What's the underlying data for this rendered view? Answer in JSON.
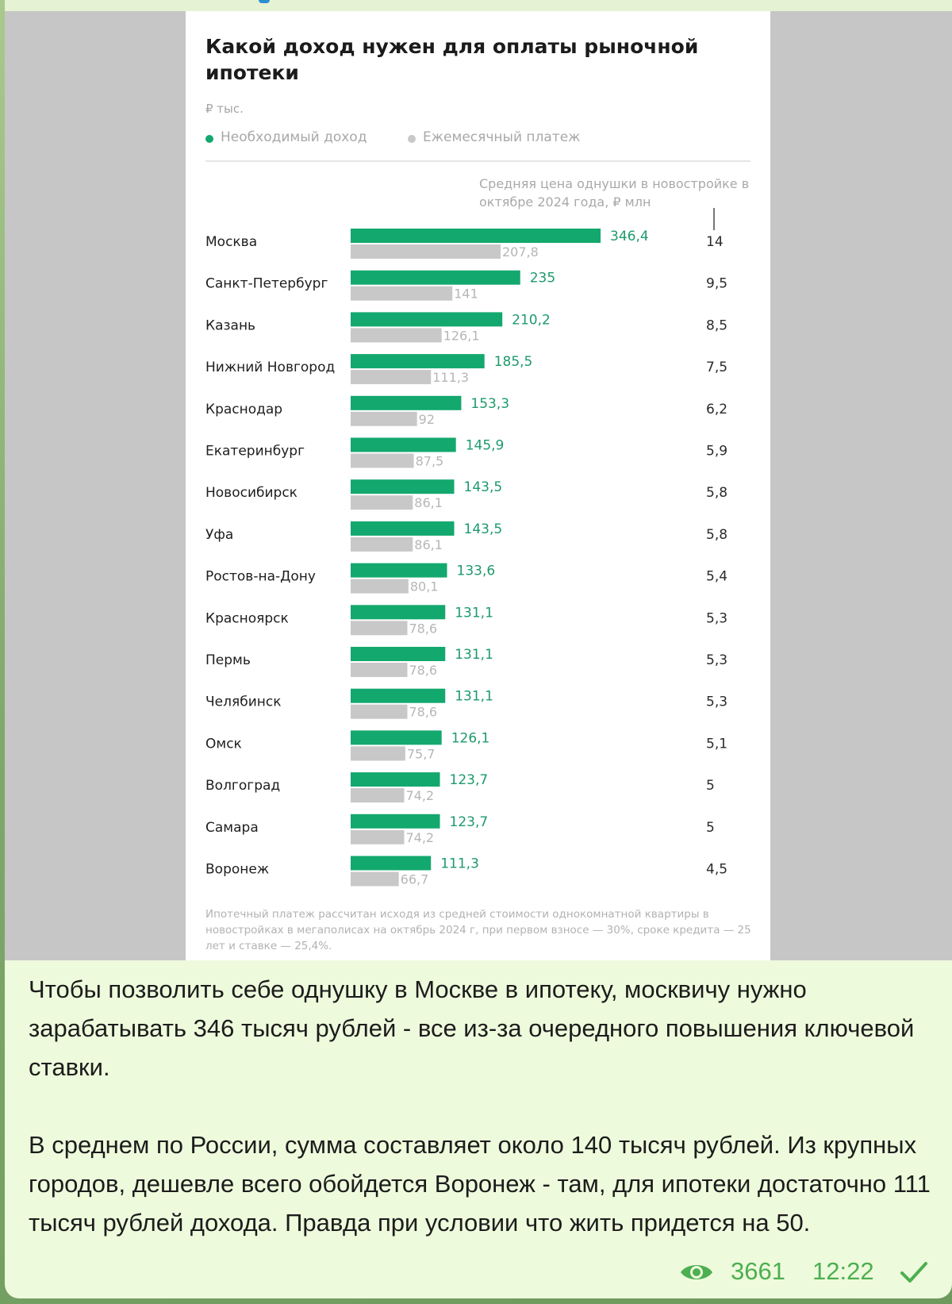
{
  "post": {
    "image": {
      "title": "Какой доход нужен для оплаты рыночной ипотеки",
      "unit": "₽ тыс.",
      "legend": [
        {
          "label": "Необходимый доход",
          "color": "#13a86e"
        },
        {
          "label": "Ежемесячный платеж",
          "color": "#c8c8c8"
        }
      ],
      "price_header": "Средняя цена однушки в новостройке в октябре 2024 года, ₽ млн",
      "footnote": "Ипотечный платеж рассчитан исходя из средней стоимости однокомнатной квартиры в новостройках в мегаполисах на октябрь 2024 г, при первом взносе — 30%, сроке кредита — 25 лет и ставке — 25,4%."
    },
    "caption": {
      "paragraph_1": "Чтобы позволить себе однушку в Москве в ипотеку, москвичу нужно зарабатывать 346 тысяч рублей - все из-за очередного повышения ключевой ставки.",
      "paragraph_2": "В среднем по России, сумма составляет около 140 тысяч рублей. Из крупных городов, дешевле всего обойдется Воронеж - там, для ипотеки достаточно 111 тысяч рублей дохода. Правда при условии что жить придется на 50."
    },
    "meta": {
      "views": "3661",
      "time": "12:22",
      "eye_icon": "eye-icon",
      "check_icon": "check-icon"
    }
  },
  "chart_data": {
    "type": "bar",
    "orientation": "horizontal",
    "title": "Какой доход нужен для оплаты рыночной ипотеки",
    "unit": "₽ тыс.",
    "categories": [
      "Москва",
      "Санкт-Петербург",
      "Казань",
      "Нижний Новгород",
      "Краснодар",
      "Екатеринбург",
      "Новосибирск",
      "Уфа",
      "Ростов-на-Дону",
      "Красноярск",
      "Пермь",
      "Челябинск",
      "Омск",
      "Волгоград",
      "Самара",
      "Воронеж"
    ],
    "series": [
      {
        "name": "Необходимый доход",
        "color": "#13a86e",
        "values": [
          346.4,
          235,
          210.2,
          185.5,
          153.3,
          145.9,
          143.5,
          143.5,
          133.6,
          131.1,
          131.1,
          131.1,
          126.1,
          123.7,
          123.7,
          111.3
        ],
        "labels": [
          "346,4",
          "235",
          "210,2",
          "185,5",
          "153,3",
          "145,9",
          "143,5",
          "143,5",
          "133,6",
          "131,1",
          "131,1",
          "131,1",
          "126,1",
          "123,7",
          "123,7",
          "111,3"
        ]
      },
      {
        "name": "Ежемесячный платеж",
        "color": "#c8c8c8",
        "values": [
          207.8,
          141,
          126.1,
          111.3,
          92,
          87.5,
          86.1,
          86.1,
          80.1,
          78.6,
          78.6,
          78.6,
          75.7,
          74.2,
          74.2,
          66.7
        ],
        "labels": [
          "207,8",
          "141",
          "126,1",
          "111,3",
          "92",
          "87,5",
          "86,1",
          "86,1",
          "80,1",
          "78,6",
          "78,6",
          "78,6",
          "75,7",
          "74,2",
          "74,2",
          "66,7"
        ]
      }
    ],
    "side_column": {
      "header": "Средняя цена однушки в новостройке в октябре 2024 года, ₽ млн",
      "values": [
        14,
        9.5,
        8.5,
        7.5,
        6.2,
        5.9,
        5.8,
        5.8,
        5.4,
        5.3,
        5.3,
        5.3,
        5.1,
        5,
        5,
        4.5
      ],
      "labels": [
        "14",
        "9,5",
        "8,5",
        "7,5",
        "6,2",
        "5,9",
        "5,8",
        "5,8",
        "5,4",
        "5,3",
        "5,3",
        "5,3",
        "5,1",
        "5",
        "5",
        "4,5"
      ]
    },
    "grid": false,
    "legend_position": "top-left"
  }
}
